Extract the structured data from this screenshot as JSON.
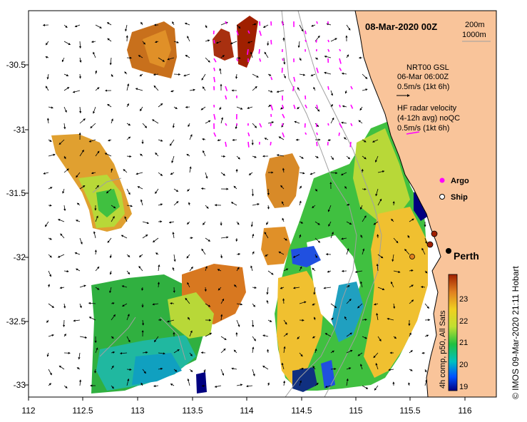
{
  "map": {
    "title": "08-Mar-2020 00Z",
    "depth_contours": [
      "200m",
      "1000m"
    ],
    "x_ticks": [
      "112",
      "112.5",
      "113",
      "113.5",
      "114",
      "114.5",
      "115",
      "115.5",
      "116"
    ],
    "y_ticks": [
      "-30.5",
      "-31",
      "-31.5",
      "-32",
      "-32.5",
      "-33"
    ],
    "legend": {
      "nrt_line1": "NRT00 GSL",
      "nrt_line2": "06-Mar 06:00Z",
      "nrt_line3": "0.5m/s (1kt 6h)",
      "hf_line1": "HF radar velocity",
      "hf_line2": "(4-12h avg) noQC",
      "hf_line3": "0.5m/s (1kt 6h)",
      "argo_label": "Argo",
      "ship_label": "Ship"
    },
    "city": "Perth",
    "colorbar": {
      "label": "4h comp, p50, All Sats",
      "ticks": [
        "19",
        "20",
        "21",
        "22",
        "23"
      ]
    },
    "credit": "© IMOS 09-Mar-2020 21:11 Hobart",
    "colors": {
      "land": "#f9c49a",
      "ocean": "#ffffff",
      "sst_arrow": "#000000",
      "hf_arrow": "#ff00ff",
      "contour": "#a0a0a0",
      "argo": "#ff00ff"
    }
  }
}
